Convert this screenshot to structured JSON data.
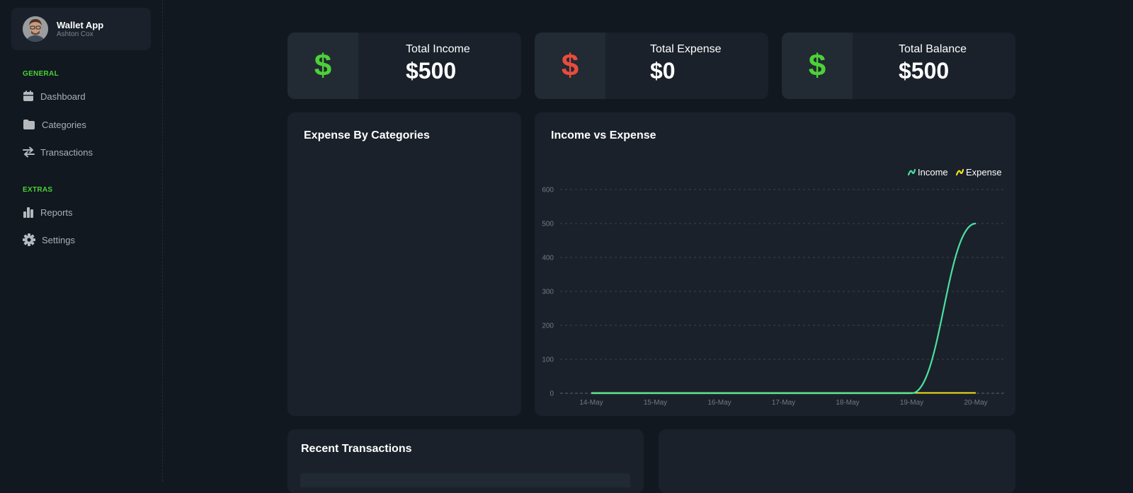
{
  "profile": {
    "app_name": "Wallet App",
    "user_name": "Ashton Cox"
  },
  "sidebar": {
    "sections": [
      {
        "label": "GENERAL",
        "items": [
          {
            "label": "Dashboard",
            "icon": "calendar-icon"
          },
          {
            "label": "Categories",
            "icon": "folder-icon"
          },
          {
            "label": "Transactions",
            "icon": "transfer-arrows-icon"
          }
        ]
      },
      {
        "label": "EXTRAS",
        "items": [
          {
            "label": "Reports",
            "icon": "bar-chart-icon"
          },
          {
            "label": "Settings",
            "icon": "gear-icon"
          }
        ]
      }
    ]
  },
  "stats": [
    {
      "title": "Total Income",
      "value": "$500",
      "icon": "dollar-icon",
      "color": "#4cd137"
    },
    {
      "title": "Total Expense",
      "value": "$0",
      "icon": "dollar-icon",
      "color": "#e84c3d"
    },
    {
      "title": "Total Balance",
      "value": "$500",
      "icon": "dollar-icon",
      "color": "#4cd137"
    }
  ],
  "panels": {
    "expense_by_categories_title": "Expense By Categories",
    "income_vs_expense_title": "Income vs Expense",
    "recent_transactions_title": "Recent Transactions"
  },
  "colors": {
    "accent_green": "#4cd137",
    "income_line": "#4be0a0",
    "expense_line": "#f1e41a",
    "danger": "#e84c3d",
    "background": "#111820",
    "card": "#1a212a"
  },
  "chart_data": {
    "type": "line",
    "title": "Income vs Expense",
    "x": [
      "14-May",
      "15-May",
      "16-May",
      "17-May",
      "18-May",
      "19-May",
      "20-May"
    ],
    "series": [
      {
        "name": "Income",
        "values": [
          0,
          0,
          0,
          0,
          0,
          0,
          500
        ],
        "color": "#4be0a0"
      },
      {
        "name": "Expense",
        "values": [
          0,
          0,
          0,
          0,
          0,
          0,
          0
        ],
        "color": "#f1e41a"
      }
    ],
    "yticks": [
      0,
      100,
      200,
      300,
      400,
      500,
      600
    ],
    "ylim": [
      0,
      600
    ],
    "grid": true,
    "legend": "top-right"
  }
}
